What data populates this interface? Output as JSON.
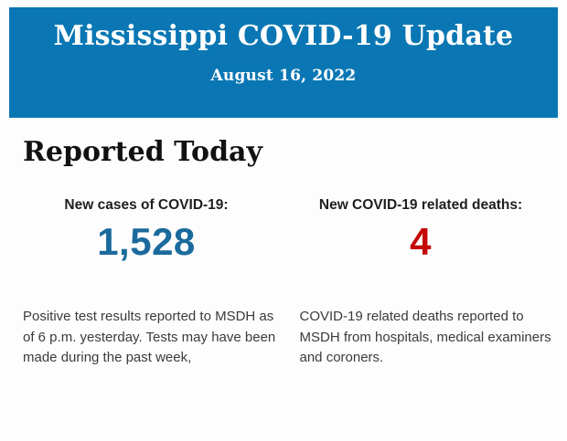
{
  "header": {
    "title": "Mississippi COVID-19 Update",
    "date": "August 16, 2022",
    "background_color": "#0a77b4",
    "text_color": "#ffffff"
  },
  "section": {
    "heading": "Reported Today"
  },
  "stats": {
    "cases": {
      "label": "New cases of COVID-19:",
      "value": "1,528",
      "value_color": "#1b6a9c",
      "description": "Positive test results reported to MSDH as of 6 p.m. yesterday. Tests may have been made during the past week,"
    },
    "deaths": {
      "label": "New COVID-19 related deaths:",
      "value": "4",
      "value_color": "#c40606",
      "description": "COVID-19 related deaths reported to MSDH from hospitals, medical examiners and coroners."
    }
  }
}
